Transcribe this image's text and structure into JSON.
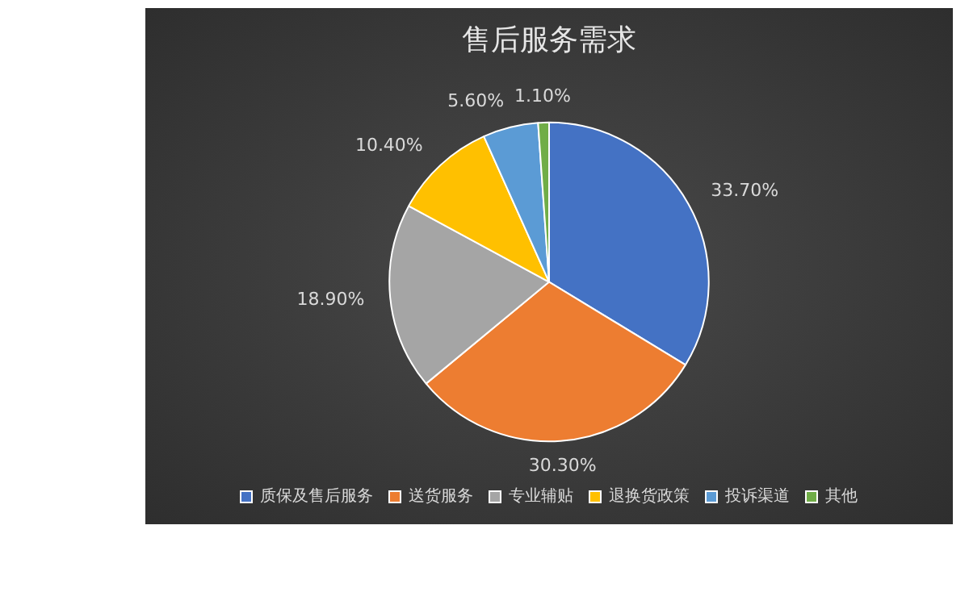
{
  "chart_data": {
    "type": "pie",
    "title": "售后服务需求",
    "categories": [
      "质保及售后服务",
      "送货服务",
      "专业辅贴",
      "退换货政策",
      "投诉渠道",
      "其他"
    ],
    "values": [
      33.7,
      30.3,
      18.9,
      10.4,
      5.6,
      1.1
    ],
    "colors": [
      "#4472c4",
      "#ed7d31",
      "#a5a5a5",
      "#ffc000",
      "#5b9bd5",
      "#70ad47"
    ],
    "value_labels": [
      "33.70%",
      "30.30%",
      "18.90%",
      "10.40%",
      "5.60%",
      "1.10%"
    ],
    "legend": "bottom"
  }
}
